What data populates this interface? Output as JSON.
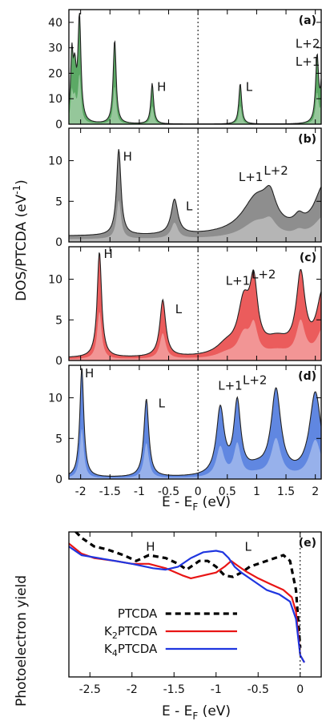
{
  "figure": {
    "ylabel_top": "DOS/PTCDA (eV",
    "ylabel_top_sup": "-1",
    "ylabel_top_close": ")",
    "xlabel_top": "E - E",
    "xlabel_top_sub": "F",
    "xlabel_top_unit": " (eV)",
    "ylabel_bottom": "Photoelectron yield",
    "xlabel_bottom": "E - E",
    "xlabel_bottom_sub": "F",
    "xlabel_bottom_unit": " (eV)"
  },
  "chart_data": [
    {
      "id": "a",
      "panel_label": "(a)",
      "type": "area",
      "color": "#3f9a4a",
      "xlim": [
        -2.2,
        2.1
      ],
      "ylim": [
        0,
        45
      ],
      "yticks": [
        "0",
        "10",
        "20",
        "30",
        "40"
      ],
      "peaks": [
        [
          -2.15,
          25,
          0.025
        ],
        [
          -2.02,
          41,
          0.03
        ],
        [
          -2.1,
          18,
          0.03
        ],
        [
          -1.42,
          33,
          0.03
        ],
        [
          -0.78,
          16,
          0.028
        ],
        [
          0.72,
          16,
          0.028
        ],
        [
          2.03,
          26,
          0.03
        ],
        [
          2.12,
          20,
          0.03
        ]
      ],
      "annotations": [
        {
          "text": "H",
          "x": -0.62,
          "y": 13
        },
        {
          "text": "L",
          "x": 0.87,
          "y": 13
        },
        {
          "text": "L+2",
          "x": 1.87,
          "y": 30
        },
        {
          "text": "L+1",
          "x": 1.87,
          "y": 23
        }
      ]
    },
    {
      "id": "b",
      "panel_label": "(b)",
      "type": "area",
      "color": "#7a7a7a",
      "xlim": [
        -2.2,
        2.1
      ],
      "ylim": [
        0,
        14
      ],
      "yticks": [
        "0",
        "5",
        "10"
      ],
      "background": 0.7,
      "peaks": [
        [
          -1.35,
          10.6,
          0.045
        ],
        [
          -0.4,
          4.3,
          0.07
        ],
        [
          1.0,
          4.5,
          0.3
        ],
        [
          1.23,
          3.0,
          0.12
        ],
        [
          1.72,
          1.2,
          0.1
        ],
        [
          2.15,
          6.0,
          0.2
        ]
      ],
      "annotations": [
        {
          "text": "H",
          "x": -1.2,
          "y": 10.0
        },
        {
          "text": "L",
          "x": -0.15,
          "y": 3.9
        },
        {
          "text": "L+1",
          "x": 0.9,
          "y": 7.5
        },
        {
          "text": "L+2",
          "x": 1.33,
          "y": 8.3
        }
      ]
    },
    {
      "id": "c",
      "panel_label": "(c)",
      "type": "area",
      "color": "#e8403f",
      "xlim": [
        -2.2,
        2.1
      ],
      "ylim": [
        0,
        14
      ],
      "yticks": [
        "0",
        "5",
        "10"
      ],
      "background": 0.3,
      "peaks": [
        [
          -1.68,
          13.0,
          0.045
        ],
        [
          -0.6,
          7.0,
          0.06
        ],
        [
          0.48,
          1.2,
          0.2
        ],
        [
          0.78,
          6.0,
          0.12
        ],
        [
          0.95,
          7.9,
          0.08
        ],
        [
          1.35,
          1.8,
          0.25
        ],
        [
          1.75,
          9.5,
          0.09
        ],
        [
          2.12,
          7.5,
          0.12
        ]
      ],
      "annotations": [
        {
          "text": "H",
          "x": -1.53,
          "y": 12.6
        },
        {
          "text": "L",
          "x": -0.33,
          "y": 5.8
        },
        {
          "text": "L+1",
          "x": 0.68,
          "y": 9.3
        },
        {
          "text": "L+2",
          "x": 1.12,
          "y": 10.1
        }
      ]
    },
    {
      "id": "d",
      "panel_label": "(d)",
      "type": "area",
      "color": "#4472dc",
      "xlim": [
        -2.2,
        2.1
      ],
      "ylim": [
        0,
        14
      ],
      "yticks": [
        "0",
        "5",
        "10"
      ],
      "background": 0.15,
      "peaks": [
        [
          -1.98,
          13.6,
          0.04
        ],
        [
          -0.88,
          9.6,
          0.05
        ],
        [
          0.38,
          8.2,
          0.08
        ],
        [
          0.67,
          8.8,
          0.07
        ],
        [
          1.33,
          10.4,
          0.1
        ],
        [
          2.0,
          10.3,
          0.12
        ],
        [
          1.0,
          0.8,
          0.2
        ]
      ],
      "annotations": [
        {
          "text": "H",
          "x": -1.85,
          "y": 12.5
        },
        {
          "text": "L",
          "x": -0.62,
          "y": 8.8
        },
        {
          "text": "L+1",
          "x": 0.55,
          "y": 11.0
        },
        {
          "text": "L+2",
          "x": 0.97,
          "y": 11.7
        }
      ]
    },
    {
      "id": "e",
      "panel_label": "(e)",
      "type": "line",
      "xlim": [
        -2.75,
        0.25
      ],
      "ylim": [
        0,
        1
      ],
      "ylabel": "Photoelectron yield",
      "series": [
        {
          "name": "PTCDA",
          "color": "#000000",
          "dash": true,
          "points": [
            [
              -2.75,
              1.05
            ],
            [
              -2.6,
              0.96
            ],
            [
              -2.45,
              0.9
            ],
            [
              -2.3,
              0.88
            ],
            [
              -2.1,
              0.84
            ],
            [
              -1.95,
              0.8
            ],
            [
              -1.8,
              0.84
            ],
            [
              -1.6,
              0.82
            ],
            [
              -1.45,
              0.78
            ],
            [
              -1.35,
              0.74
            ],
            [
              -1.2,
              0.8
            ],
            [
              -1.1,
              0.8
            ],
            [
              -1.0,
              0.76
            ],
            [
              -0.9,
              0.7
            ],
            [
              -0.8,
              0.69
            ],
            [
              -0.7,
              0.72
            ],
            [
              -0.6,
              0.76
            ],
            [
              -0.45,
              0.79
            ],
            [
              -0.3,
              0.82
            ],
            [
              -0.2,
              0.84
            ],
            [
              -0.12,
              0.8
            ],
            [
              -0.05,
              0.6
            ],
            [
              0.0,
              0.2
            ]
          ]
        },
        {
          "name": "K2PTCDA",
          "color": "#e81515",
          "dash": false,
          "points": [
            [
              -2.75,
              0.92
            ],
            [
              -2.6,
              0.85
            ],
            [
              -2.45,
              0.82
            ],
            [
              -2.2,
              0.8
            ],
            [
              -2.0,
              0.78
            ],
            [
              -1.8,
              0.78
            ],
            [
              -1.6,
              0.75
            ],
            [
              -1.4,
              0.7
            ],
            [
              -1.3,
              0.68
            ],
            [
              -1.15,
              0.7
            ],
            [
              -1.0,
              0.72
            ],
            [
              -0.9,
              0.76
            ],
            [
              -0.82,
              0.8
            ],
            [
              -0.75,
              0.77
            ],
            [
              -0.65,
              0.73
            ],
            [
              -0.5,
              0.68
            ],
            [
              -0.35,
              0.64
            ],
            [
              -0.2,
              0.6
            ],
            [
              -0.1,
              0.55
            ],
            [
              -0.05,
              0.45
            ],
            [
              0.0,
              0.15
            ],
            [
              0.05,
              0.1
            ]
          ]
        },
        {
          "name": "K4PTCDA",
          "color": "#1f36e0",
          "dash": false,
          "points": [
            [
              -2.75,
              0.9
            ],
            [
              -2.6,
              0.84
            ],
            [
              -2.4,
              0.82
            ],
            [
              -2.2,
              0.8
            ],
            [
              -2.0,
              0.78
            ],
            [
              -1.75,
              0.75
            ],
            [
              -1.6,
              0.74
            ],
            [
              -1.45,
              0.76
            ],
            [
              -1.3,
              0.82
            ],
            [
              -1.15,
              0.86
            ],
            [
              -1.0,
              0.87
            ],
            [
              -0.92,
              0.86
            ],
            [
              -0.85,
              0.82
            ],
            [
              -0.78,
              0.76
            ],
            [
              -0.7,
              0.72
            ],
            [
              -0.55,
              0.66
            ],
            [
              -0.4,
              0.6
            ],
            [
              -0.25,
              0.57
            ],
            [
              -0.12,
              0.52
            ],
            [
              -0.05,
              0.4
            ],
            [
              0.0,
              0.15
            ],
            [
              0.05,
              0.1
            ]
          ]
        }
      ],
      "annotations": [
        {
          "text": "H",
          "x": -1.78,
          "y": 0.87
        },
        {
          "text": "L",
          "x": -0.62,
          "y": 0.87
        }
      ],
      "legend_labels": [
        {
          "main": "PTCDA",
          "pre": "",
          "sub": "",
          "post": ""
        },
        {
          "main": "",
          "pre": "K",
          "sub": "2",
          "post": "PTCDA"
        },
        {
          "main": "",
          "pre": "K",
          "sub": "4",
          "post": "PTCDA"
        }
      ]
    }
  ],
  "shared_x_ticks_top": [
    "-2",
    "-1.5",
    "-1",
    "-0.5",
    "0",
    "0.5",
    "1",
    "1.5",
    "2"
  ],
  "shared_x_tick_values_top": [
    -2,
    -1.5,
    -1,
    -0.5,
    0,
    0.5,
    1,
    1.5,
    2
  ],
  "x_ticks_bottom": [
    "-2.5",
    "-2",
    "-1.5",
    "-1",
    "-0.5",
    "0"
  ],
  "x_tick_values_bottom": [
    -2.5,
    -2,
    -1.5,
    -1,
    -0.5,
    0
  ]
}
